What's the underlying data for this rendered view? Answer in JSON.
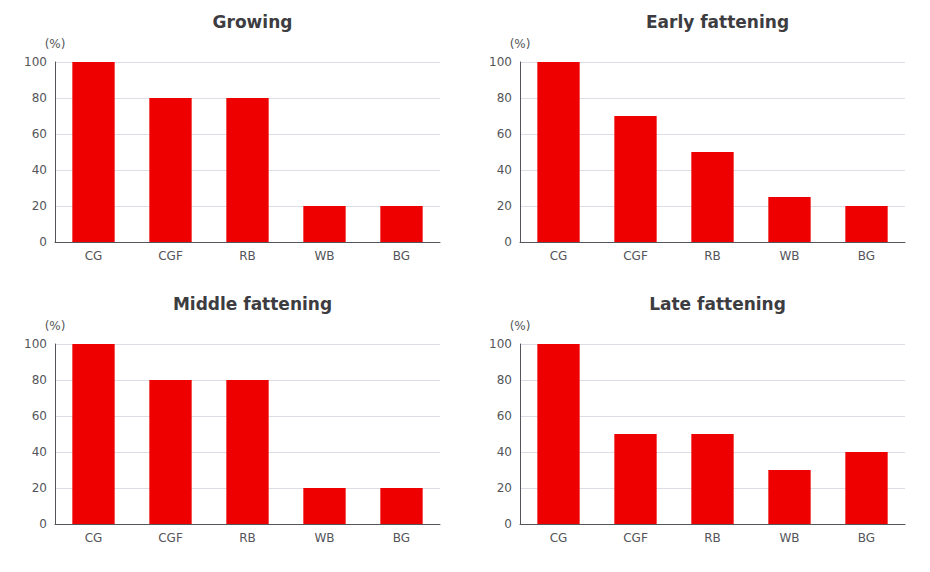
{
  "chart_data": [
    {
      "type": "bar",
      "title": "Growing",
      "ylabel": "(%)",
      "categories": [
        "CG",
        "CGF",
        "RB",
        "WB",
        "BG"
      ],
      "values": [
        100,
        80,
        80,
        20,
        20
      ],
      "color": "#EE0000",
      "ylim": [
        0,
        100
      ],
      "yticks": [
        0,
        20,
        40,
        60,
        80,
        100
      ],
      "grid": true
    },
    {
      "type": "bar",
      "title": "Early fattening",
      "ylabel": "(%)",
      "categories": [
        "CG",
        "CGF",
        "RB",
        "WB",
        "BG"
      ],
      "values": [
        100,
        70,
        50,
        25,
        20
      ],
      "color": "#EE0000",
      "ylim": [
        0,
        100
      ],
      "yticks": [
        0,
        20,
        40,
        60,
        80,
        100
      ],
      "grid": true
    },
    {
      "type": "bar",
      "title": "Middle fattening",
      "ylabel": "(%)",
      "categories": [
        "CG",
        "CGF",
        "RB",
        "WB",
        "BG"
      ],
      "values": [
        100,
        80,
        80,
        20,
        20
      ],
      "color": "#EE0000",
      "ylim": [
        0,
        100
      ],
      "yticks": [
        0,
        20,
        40,
        60,
        80,
        100
      ],
      "grid": true
    },
    {
      "type": "bar",
      "title": "Late fattening",
      "ylabel": "(%)",
      "categories": [
        "CG",
        "CGF",
        "RB",
        "WB",
        "BG"
      ],
      "values": [
        100,
        50,
        50,
        30,
        40
      ],
      "color": "#EE0000",
      "ylim": [
        0,
        100
      ],
      "yticks": [
        0,
        20,
        40,
        60,
        80,
        100
      ],
      "grid": true
    }
  ]
}
